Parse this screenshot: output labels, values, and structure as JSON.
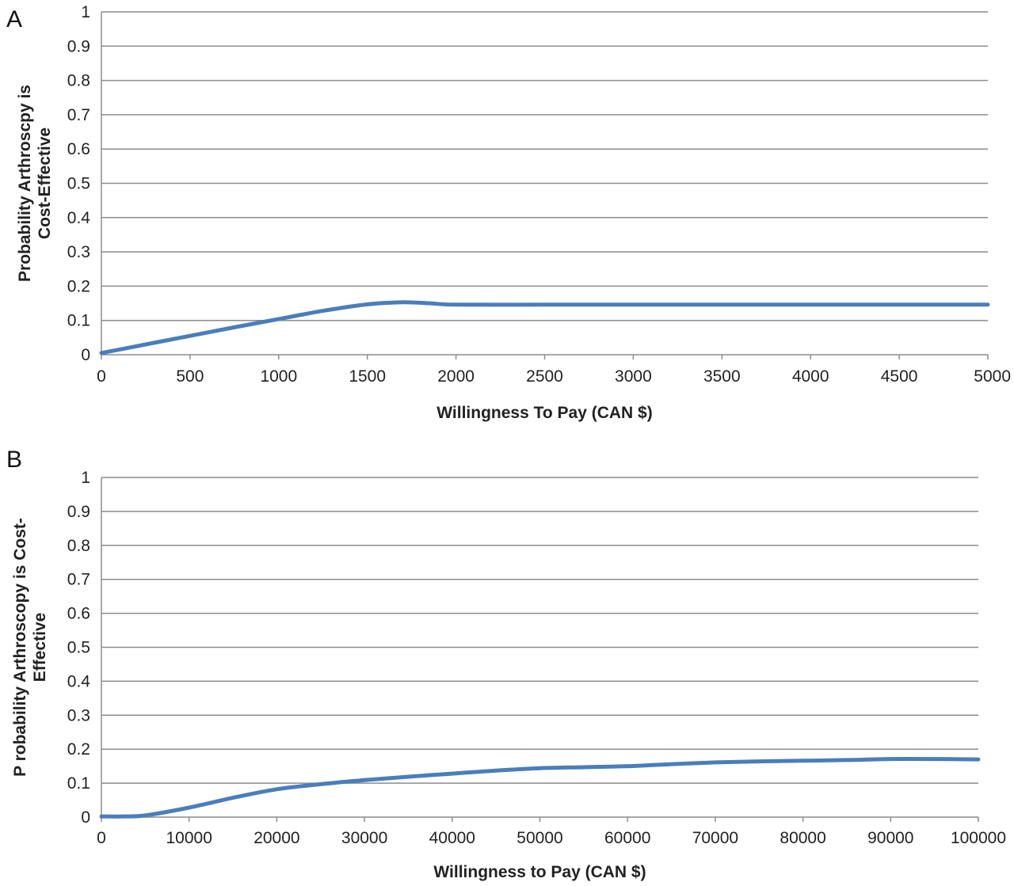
{
  "colors": {
    "series": "#4a7ebb",
    "grid": "#8c8c8c",
    "text": "#222222"
  },
  "chart_data": [
    {
      "panel_label": "A",
      "type": "line",
      "xlabel": "Willingness To Pay (CAN $)",
      "ylabel_lines": [
        "Probability Arthroscpy is",
        "Cost-Effective"
      ],
      "xlim": [
        0,
        5000
      ],
      "ylim": [
        0,
        1
      ],
      "x_ticks": [
        "0",
        "500",
        "1000",
        "1500",
        "2000",
        "2500",
        "3000",
        "3500",
        "4000",
        "4500",
        "5000"
      ],
      "y_ticks": [
        "0",
        "0.1",
        "0.2",
        "0.3",
        "0.4",
        "0.5",
        "0.6",
        "0.7",
        "0.8",
        "0.9",
        "1"
      ],
      "grid": true,
      "legend": "none",
      "series": [
        {
          "x": [
            0,
            250,
            500,
            750,
            1000,
            1250,
            1500,
            1700,
            1850,
            2000,
            2500,
            3000,
            3500,
            4000,
            4500,
            5000
          ],
          "values": [
            0.005,
            0.03,
            0.055,
            0.08,
            0.104,
            0.128,
            0.147,
            0.153,
            0.15,
            0.146,
            0.146,
            0.146,
            0.146,
            0.146,
            0.146,
            0.146
          ]
        }
      ]
    },
    {
      "panel_label": "B",
      "type": "line",
      "xlabel": "Willingness to Pay (CAN $)",
      "ylabel_lines": [
        "P robability Arthroscopy is Cost-",
        "Effective"
      ],
      "xlim": [
        0,
        100000
      ],
      "ylim": [
        0,
        1
      ],
      "x_ticks": [
        "0",
        "10000",
        "20000",
        "30000",
        "40000",
        "50000",
        "60000",
        "70000",
        "80000",
        "90000",
        "100000"
      ],
      "y_ticks": [
        "0",
        "0.1",
        "0.2",
        "0.3",
        "0.4",
        "0.5",
        "0.6",
        "0.7",
        "0.8",
        "0.9",
        "1"
      ],
      "grid": true,
      "legend": "none",
      "series": [
        {
          "x": [
            0,
            2500,
            5000,
            10000,
            15000,
            20000,
            25000,
            30000,
            35000,
            40000,
            45000,
            50000,
            55000,
            60000,
            65000,
            70000,
            75000,
            80000,
            85000,
            90000,
            95000,
            100000
          ],
          "values": [
            0.002,
            0.002,
            0.005,
            0.028,
            0.057,
            0.082,
            0.097,
            0.109,
            0.119,
            0.128,
            0.137,
            0.144,
            0.147,
            0.15,
            0.156,
            0.161,
            0.164,
            0.166,
            0.168,
            0.171,
            0.171,
            0.17
          ]
        }
      ]
    }
  ]
}
